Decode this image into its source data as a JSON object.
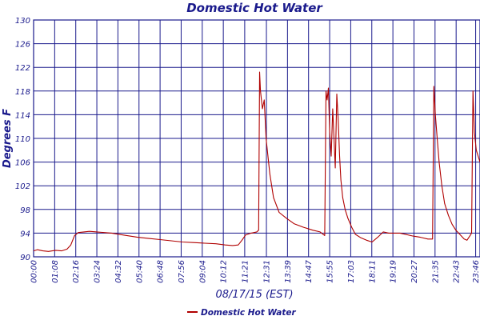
{
  "chart_data": {
    "type": "line",
    "title": "Domestic Hot Water",
    "xlabel": "08/17/15 (EST)",
    "ylabel": "Degrees F",
    "ylim": [
      90,
      130
    ],
    "yticks": [
      90,
      94,
      98,
      102,
      106,
      110,
      114,
      118,
      122,
      126,
      130
    ],
    "xlim": [
      0,
      24
    ],
    "xtick_labels": [
      "00:00",
      "01:08",
      "02:16",
      "03:24",
      "04:32",
      "05:40",
      "06:48",
      "07:56",
      "09:04",
      "10:12",
      "11:21",
      "12:31",
      "13:39",
      "14:47",
      "15:55",
      "17:03",
      "18:11",
      "19:19",
      "20:27",
      "21:35",
      "22:43",
      "23:46"
    ],
    "xtick_hours": [
      0,
      1.133,
      2.267,
      3.4,
      4.533,
      5.667,
      6.8,
      7.933,
      9.067,
      10.2,
      11.35,
      12.517,
      13.65,
      14.783,
      15.917,
      17.05,
      18.183,
      19.317,
      20.45,
      21.583,
      22.717,
      23.767
    ],
    "grid": true,
    "legend_position": "bottom-center",
    "series": [
      {
        "name": "Domestic Hot Water",
        "color": "#b00000",
        "x": [
          0,
          0.2,
          0.5,
          0.8,
          1.0,
          1.2,
          1.5,
          1.8,
          2.0,
          2.2,
          2.4,
          2.7,
          3.0,
          3.4,
          3.8,
          4.2,
          4.6,
          5.0,
          5.6,
          6.2,
          6.8,
          7.4,
          8.0,
          8.6,
          9.2,
          9.8,
          10.3,
          10.7,
          11.0,
          11.2,
          11.4,
          11.7,
          12.0,
          12.1,
          12.15,
          12.2,
          12.3,
          12.4,
          12.5,
          12.7,
          12.9,
          13.2,
          13.6,
          14.0,
          14.5,
          15.0,
          15.4,
          15.65,
          15.72,
          15.78,
          15.85,
          15.92,
          16.0,
          16.08,
          16.15,
          16.22,
          16.3,
          16.38,
          16.45,
          16.52,
          16.62,
          16.75,
          16.9,
          17.1,
          17.3,
          17.6,
          17.9,
          18.2,
          18.5,
          18.8,
          19.1,
          19.4,
          19.7,
          20.0,
          20.4,
          20.8,
          21.2,
          21.45,
          21.52,
          21.6,
          21.7,
          21.8,
          21.95,
          22.1,
          22.3,
          22.5,
          22.7,
          22.85,
          23.0,
          23.15,
          23.3,
          23.45,
          23.55,
          23.62,
          23.7,
          23.8,
          24.0
        ],
        "values": [
          91.0,
          91.2,
          91.0,
          90.9,
          91.0,
          91.1,
          91.0,
          91.3,
          92.0,
          93.6,
          94.1,
          94.2,
          94.3,
          94.2,
          94.1,
          94.0,
          93.8,
          93.6,
          93.3,
          93.1,
          92.9,
          92.7,
          92.5,
          92.4,
          92.3,
          92.2,
          92.0,
          91.9,
          92.0,
          92.8,
          93.7,
          94.0,
          94.2,
          94.5,
          121.2,
          118.0,
          115.0,
          116.5,
          110.0,
          104.0,
          100.0,
          97.5,
          96.5,
          95.6,
          95.0,
          94.5,
          94.2,
          93.6,
          118.0,
          116.5,
          118.5,
          111.0,
          107.0,
          115.0,
          110.0,
          105.0,
          117.5,
          113.0,
          107.0,
          103.0,
          100.0,
          98.0,
          96.5,
          95.0,
          93.8,
          93.2,
          92.8,
          92.5,
          93.3,
          94.2,
          94.0,
          94.0,
          94.0,
          93.8,
          93.5,
          93.3,
          93.0,
          93.0,
          118.8,
          114.0,
          110.0,
          106.0,
          102.0,
          99.0,
          97.0,
          95.5,
          94.5,
          94.0,
          93.5,
          93.0,
          92.8,
          93.5,
          94.0,
          118.0,
          111.0,
          108.0,
          106.0
        ]
      }
    ]
  }
}
